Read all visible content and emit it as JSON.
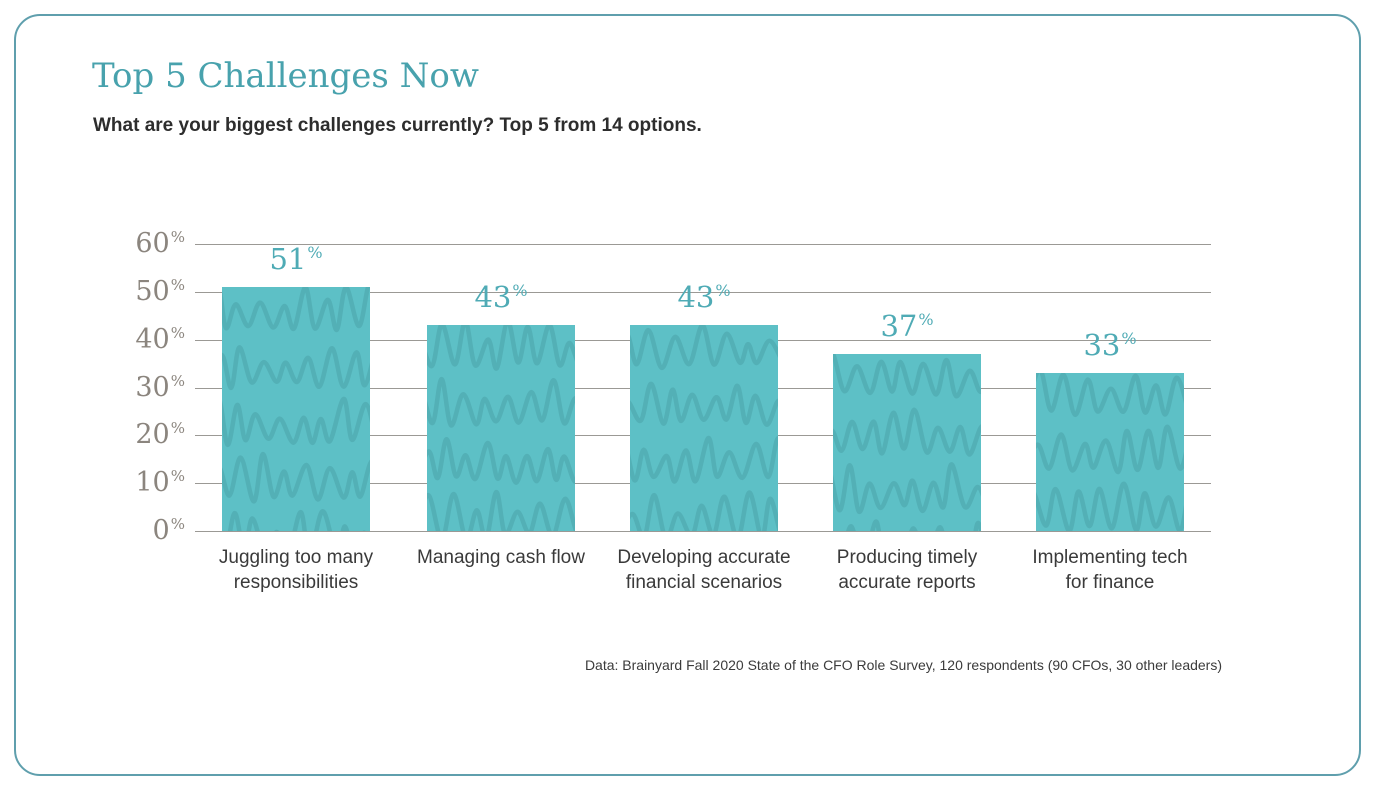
{
  "page": {
    "title": "Top 5 Challenges Now",
    "subtitle": "What are your biggest challenges currently? Top 5 from 14 options.",
    "footnote": "Data: Brainyard Fall 2020 State of the CFO Role Survey, 120 respondents (90 CFOs, 30 other leaders)"
  },
  "chart_data": {
    "type": "bar",
    "title": "Top 5 Challenges Now",
    "subtitle": "What are your biggest challenges currently? Top 5 from 14 options.",
    "categories": [
      "Juggling too many\nresponsibilities",
      "Managing cash flow",
      "Developing accurate\nfinancial scenarios",
      "Producing timely\naccurate reports",
      "Implementing tech\nfor finance"
    ],
    "values": [
      51,
      43,
      43,
      37,
      33
    ],
    "bar_labels": [
      "51%",
      "43%",
      "43%",
      "37%",
      "33%"
    ],
    "unit": "%",
    "xlabel": "",
    "ylabel": "",
    "ylim": [
      0,
      60
    ],
    "yticks": [
      0,
      10,
      20,
      30,
      40,
      50,
      60
    ],
    "grid": true,
    "legend": false,
    "source_note": "Data: Brainyard Fall 2020 State of the CFO Role Survey, 120 respondents (90 CFOs, 30 other leaders)"
  },
  "colors": {
    "bar_fill": "#5dc0c6",
    "bar_pattern": "#4da6ac",
    "title_teal": "#48a2ad",
    "value_label_teal": "#4fabb5",
    "y_axis_label": "#8b857e",
    "gridline": "#9b9995",
    "category_label": "#3a3a3a",
    "frame_border": "#5f9fad",
    "text_dark": "#2d2d2d"
  }
}
